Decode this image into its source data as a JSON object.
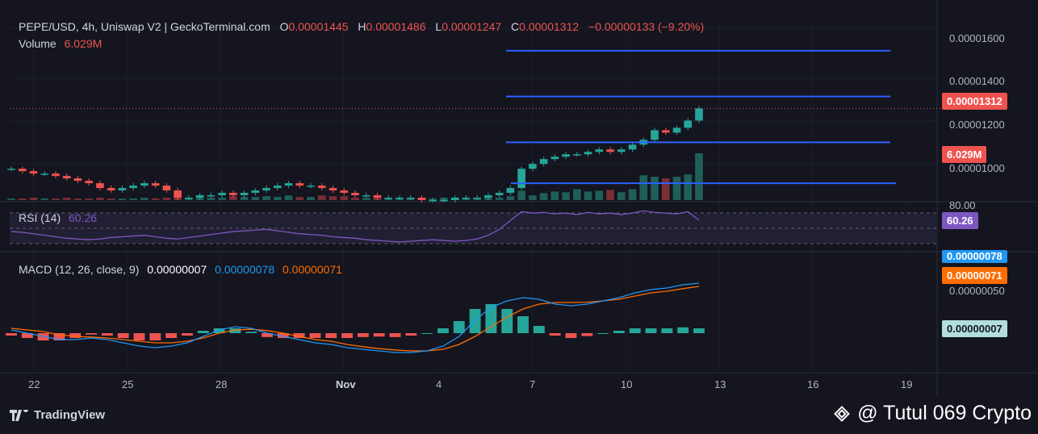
{
  "header": {
    "symbol": "PEPE/USD, 4h, Uniswap V2 | GeckoTerminal.com",
    "o_label": "O",
    "o_value": "0.00001445",
    "h_label": "H",
    "h_value": "0.00001486",
    "l_label": "L",
    "l_value": "0.00001247",
    "c_label": "C",
    "c_value": "0.00001312",
    "change": "−0.00000133 (−9.20%)",
    "volume_label": "Volume",
    "volume_value": "6.029M"
  },
  "rsi": {
    "label": "RSI (14)",
    "value": "60.26",
    "axis_top": "80.00"
  },
  "macd": {
    "label": "MACD (12, 26, close, 9)",
    "hist_value": "0.00000007",
    "macd_value": "0.00000078",
    "signal_value": "0.00000071",
    "axis_mid": "0.00000050"
  },
  "price_axis": [
    "0.00001600",
    "0.00001400",
    "0.00001200",
    "0.00001000"
  ],
  "price_label": "0.00001312",
  "volume_label_box": "6.029M",
  "x_axis": [
    "22",
    "25",
    "28",
    "Nov",
    "4",
    "7",
    "10",
    "13",
    "16",
    "19"
  ],
  "branding": {
    "tradingview": "TradingView",
    "watermark": "@ Tutul 069 Crypto"
  },
  "colors": {
    "up": "#26a69a",
    "down": "#ef5350",
    "rsi": "#7e57c2",
    "macd": "#2196f3",
    "signal": "#ff6d00",
    "level": "#2962ff"
  },
  "chart_data": {
    "type": "line",
    "xlabel": "",
    "ylabel": "",
    "price_ylim": [
      9.3e-06,
      1.66e-05
    ],
    "close_series": [
      1.06e-05,
      1.05e-05,
      1.04e-05,
      1.04e-05,
      1.03e-05,
      1.02e-05,
      1.01e-05,
      1e-05,
      9.8e-06,
      9.7e-06,
      9.8e-06,
      9.9e-06,
      1e-05,
      9.9e-06,
      9.7e-06,
      9.4e-06,
      9.4e-06,
      9.5e-06,
      9.5e-06,
      9.6e-06,
      9.5e-06,
      9.6e-06,
      9.7e-06,
      9.8e-06,
      9.9e-06,
      1e-05,
      9.9e-06,
      9.9e-06,
      9.8e-06,
      9.7e-06,
      9.6e-06,
      9.5e-06,
      9.5e-06,
      9.4e-06,
      9.4e-06,
      9.4e-06,
      9.4e-06,
      9.3e-06,
      9.3e-06,
      9.3e-06,
      9.4e-06,
      9.4e-06,
      9.4e-06,
      9.5e-06,
      9.6e-06,
      9.8e-06,
      1.06e-05,
      1.08e-05,
      1.1e-05,
      1.11e-05,
      1.12e-05,
      1.12e-05,
      1.13e-05,
      1.14e-05,
      1.13e-05,
      1.14e-05,
      1.16e-05,
      1.18e-05,
      1.22e-05,
      1.21e-05,
      1.23e-05,
      1.26e-05,
      1.31e-05
    ],
    "volume_series": [
      0.2,
      0.2,
      0.3,
      0.2,
      0.2,
      0.3,
      0.2,
      0.2,
      0.3,
      0.2,
      0.2,
      0.2,
      0.3,
      0.2,
      0.3,
      0.8,
      0.3,
      0.3,
      0.3,
      0.3,
      0.5,
      0.4,
      0.4,
      0.5,
      0.4,
      0.6,
      0.4,
      0.4,
      0.6,
      0.5,
      0.5,
      0.3,
      0.3,
      0.3,
      0.3,
      0.2,
      0.3,
      0.2,
      0.2,
      0.3,
      0.3,
      0.2,
      0.3,
      0.3,
      0.3,
      0.5,
      1.2,
      0.6,
      0.9,
      1.1,
      1.0,
      1.4,
      1.1,
      1.2,
      1.3,
      1.0,
      1.4,
      3.2,
      3.0,
      2.8,
      3.0,
      3.3,
      6.029
    ],
    "rsi_series": [
      45,
      44,
      42,
      40,
      38,
      36,
      35,
      34,
      35,
      37,
      38,
      39,
      40,
      38,
      36,
      35,
      37,
      39,
      41,
      43,
      45,
      46,
      47,
      48,
      46,
      44,
      42,
      41,
      40,
      38,
      37,
      36,
      34,
      33,
      32,
      31,
      32,
      33,
      34,
      33,
      32,
      33,
      35,
      40,
      48,
      60,
      72,
      70,
      71,
      69,
      70,
      68,
      71,
      69,
      70,
      68,
      70,
      73,
      71,
      70,
      69,
      72,
      60.26
    ],
    "rsi_ylim": [
      20,
      80
    ],
    "macd_series": [
      0.1,
      0.0,
      -0.1,
      -0.2,
      -0.2,
      -0.15,
      -0.2,
      -0.3,
      -0.4,
      -0.45,
      -0.4,
      -0.3,
      -0.1,
      0.1,
      0.2,
      0.15,
      0.0,
      -0.1,
      -0.2,
      -0.3,
      -0.35,
      -0.45,
      -0.5,
      -0.55,
      -0.6,
      -0.6,
      -0.55,
      -0.4,
      -0.1,
      0.4,
      0.8,
      1.0,
      1.1,
      1.05,
      0.9,
      0.85,
      0.9,
      1.0,
      1.1,
      1.25,
      1.35,
      1.4,
      1.5,
      1.55
    ],
    "signal_series": [
      0.15,
      0.1,
      0.05,
      -0.05,
      -0.1,
      -0.12,
      -0.15,
      -0.2,
      -0.25,
      -0.3,
      -0.3,
      -0.25,
      -0.15,
      0.0,
      0.1,
      0.12,
      0.08,
      0.0,
      -0.1,
      -0.2,
      -0.25,
      -0.35,
      -0.42,
      -0.48,
      -0.52,
      -0.55,
      -0.55,
      -0.5,
      -0.35,
      -0.1,
      0.2,
      0.5,
      0.75,
      0.9,
      0.95,
      0.95,
      0.96,
      1.0,
      1.05,
      1.15,
      1.25,
      1.3,
      1.38,
      1.45
    ],
    "macd_ylim": [
      -0.8,
      2.0
    ],
    "horizontal_levels": [
      1.55e-05,
      1.36e-05,
      1.17e-05,
      1e-05
    ]
  }
}
